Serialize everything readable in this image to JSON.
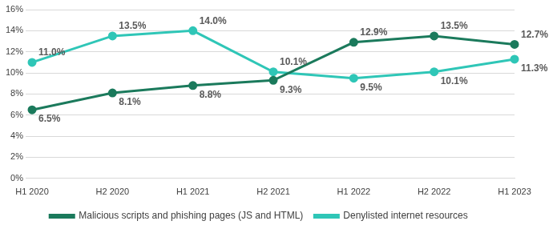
{
  "chart_data": {
    "type": "line",
    "categories": [
      "H1 2020",
      "H2 2020",
      "H1 2021",
      "H2 2021",
      "H1 2022",
      "H2 2022",
      "H1 2023"
    ],
    "series": [
      {
        "name": "Malicious scripts and phishing pages (JS and HTML)",
        "color": "#1b7a5c",
        "marker": "circle",
        "line_style": "solid",
        "values": [
          6.5,
          8.1,
          8.8,
          9.3,
          12.9,
          13.5,
          12.7
        ],
        "value_labels": [
          "6.5%",
          "8.1%",
          "8.8%",
          "9.3%",
          "12.9%",
          "13.5%",
          "12.7%"
        ]
      },
      {
        "name": "Denylisted internet resources",
        "color": "#2fc6b7",
        "marker": "circle",
        "line_style": "solid",
        "values": [
          11.0,
          13.5,
          14.0,
          10.1,
          9.5,
          10.1,
          11.3
        ],
        "value_labels": [
          "11.0%",
          "13.5%",
          "14.0%",
          "10.1%",
          "9.5%",
          "10.1%",
          "11.3%"
        ]
      }
    ],
    "ylim": [
      0,
      16
    ],
    "yticks": [
      {
        "value": 0,
        "label": "0%"
      },
      {
        "value": 2,
        "label": "2%"
      },
      {
        "value": 4,
        "label": "4%"
      },
      {
        "value": 6,
        "label": "6%"
      },
      {
        "value": 8,
        "label": "8%"
      },
      {
        "value": 10,
        "label": "10%"
      },
      {
        "value": 12,
        "label": "12%"
      },
      {
        "value": 14,
        "label": "14%"
      },
      {
        "value": 16,
        "label": "16%"
      }
    ],
    "grid": true,
    "legend": "bottom",
    "data_labels": true
  }
}
